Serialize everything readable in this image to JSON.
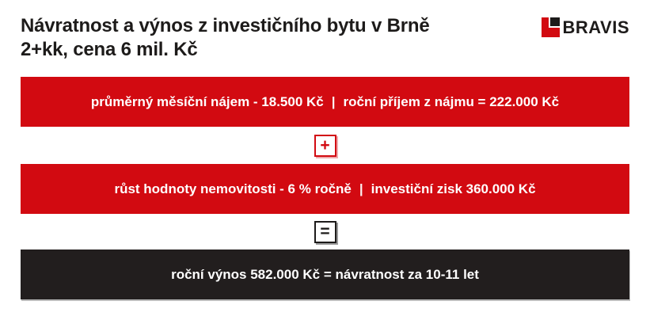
{
  "header": {
    "title_line1": "Návratnost a výnos z investičního bytu v Brně",
    "title_line2": "2+kk, cena 6 mil. Kč"
  },
  "logo": {
    "text": "BRAVIS",
    "icon": "bravis-red-square-mark"
  },
  "colors": {
    "accent_red": "#d20a11",
    "dark": "#1d1b1a",
    "banner_text": "#ffffff",
    "background": "#ffffff"
  },
  "rows": {
    "rent": {
      "left": "průměrný měsíční nájem - 18.500 Kč",
      "separator": "|",
      "right": "roční příjem z nájmu = 222.000 Kč"
    },
    "growth": {
      "left": "růst hodnoty nemovitosti - 6 % ročně",
      "separator": "|",
      "right": "investiční zisk 360.000 Kč"
    },
    "result": {
      "text": "roční výnos 582.000 Kč = návratnost za 10-11 let"
    }
  },
  "operators": {
    "plus": "+",
    "equals": "="
  }
}
